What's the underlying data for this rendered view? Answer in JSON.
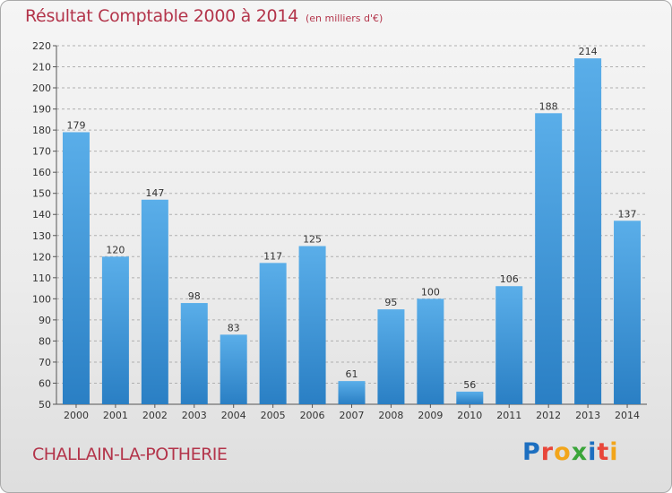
{
  "header": {
    "title": "Résultat Comptable 2000 à 2014",
    "subtitle": "(en milliers d'€)"
  },
  "footer": {
    "commune": "CHALLAIN-LA-POTHERIE",
    "brand": "Proxiti",
    "brand_colors": [
      "#1d6fc0",
      "#e8463a",
      "#f2a51a",
      "#3aa53a",
      "#1d6fc0",
      "#e8463a",
      "#f2a51a"
    ]
  },
  "colors": {
    "title": "#b3344a",
    "bar_light": "#5aaee9",
    "bar_dark": "#2a7fc4",
    "grid": "#b0b0b0"
  },
  "chart_data": {
    "type": "bar",
    "title": "Résultat Comptable 2000 à 2014",
    "subtitle": "(en milliers d'€)",
    "categories": [
      "2000",
      "2001",
      "2002",
      "2003",
      "2004",
      "2005",
      "2006",
      "2007",
      "2008",
      "2009",
      "2010",
      "2011",
      "2012",
      "2013",
      "2014"
    ],
    "values": [
      179,
      120,
      147,
      98,
      83,
      117,
      125,
      61,
      95,
      100,
      56,
      106,
      188,
      214,
      137
    ],
    "ylim": [
      50,
      220
    ],
    "yticks": [
      50,
      60,
      70,
      80,
      90,
      100,
      110,
      120,
      130,
      140,
      150,
      160,
      170,
      180,
      190,
      200,
      210,
      220
    ],
    "grid": true,
    "data_labels": true
  }
}
